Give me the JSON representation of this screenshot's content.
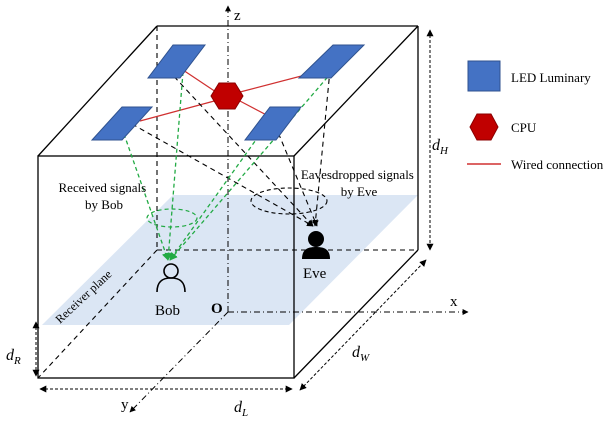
{
  "axes": {
    "z": "z",
    "x": "x",
    "y": "y",
    "origin": "O"
  },
  "dimensions": {
    "height_main": "d",
    "height_sub": "H",
    "receiver_main": "d",
    "receiver_sub": "R",
    "width_main": "d",
    "width_sub": "W",
    "length_main": "d",
    "length_sub": "L"
  },
  "annotations": {
    "bob_signals_line1": "Received signals",
    "bob_signals_line2": "by Bob",
    "eve_signals_line1": "Eavesdropped signals",
    "eve_signals_line2": "by Eve",
    "receiver_plane": "Receiver plane",
    "bob": "Bob",
    "eve": "Eve"
  },
  "legend": {
    "led": "LED Luminary",
    "cpu": "CPU",
    "wire": "Wired connection"
  },
  "colors": {
    "led_fill": "#4472c4",
    "led_stroke": "#2f528f",
    "cpu_fill": "#c00000",
    "wire": "#d03030",
    "bob_ray": "#22aa44",
    "plane": "#dbe6f4"
  }
}
